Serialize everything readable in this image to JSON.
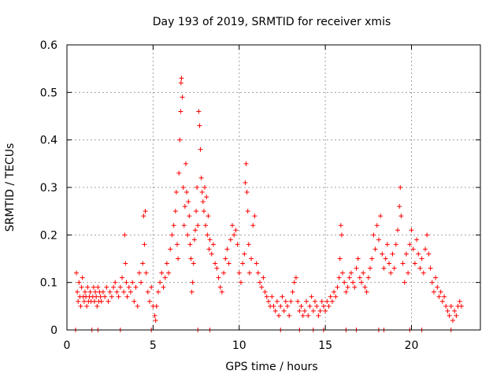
{
  "chart_data": {
    "type": "scatter",
    "title": "Day 193 of 2019, SRMTID for receiver xmis",
    "xlabel": "GPS time / hours",
    "ylabel": "SRMTID / TECUs",
    "xlim": [
      0,
      24
    ],
    "ylim": [
      0,
      0.6
    ],
    "xticks": [
      0,
      5,
      10,
      15,
      20
    ],
    "xtick_labels": [
      "0",
      "5",
      "10",
      "15",
      "20"
    ],
    "yticks": [
      0,
      0.1,
      0.2,
      0.3,
      0.4,
      0.5,
      0.6
    ],
    "ytick_labels": [
      "0",
      "0.1",
      "0.2",
      "0.3",
      "0.4",
      "0.5",
      "0.6"
    ],
    "grid": true,
    "marker": "+",
    "color": "#ff0000",
    "series": [
      {
        "name": "SRMTID",
        "points": [
          [
            0.5,
            0.0
          ],
          [
            0.55,
            0.12
          ],
          [
            0.6,
            0.08
          ],
          [
            0.65,
            0.06
          ],
          [
            0.7,
            0.1
          ],
          [
            0.75,
            0.07
          ],
          [
            0.8,
            0.05
          ],
          [
            0.85,
            0.09
          ],
          [
            0.9,
            0.11
          ],
          [
            0.95,
            0.07
          ],
          [
            1.0,
            0.06
          ],
          [
            1.05,
            0.08
          ],
          [
            1.1,
            0.07
          ],
          [
            1.15,
            0.05
          ],
          [
            1.2,
            0.09
          ],
          [
            1.25,
            0.06
          ],
          [
            1.3,
            0.07
          ],
          [
            1.35,
            0.08
          ],
          [
            1.4,
            0.06
          ],
          [
            1.45,
            0.0
          ],
          [
            1.5,
            0.07
          ],
          [
            1.55,
            0.09
          ],
          [
            1.6,
            0.06
          ],
          [
            1.65,
            0.08
          ],
          [
            1.7,
            0.07
          ],
          [
            1.75,
            0.05
          ],
          [
            1.8,
            0.09
          ],
          [
            1.85,
            0.06
          ],
          [
            1.9,
            0.08
          ],
          [
            1.95,
            0.07
          ],
          [
            2.0,
            0.06
          ],
          [
            2.1,
            0.08
          ],
          [
            2.2,
            0.07
          ],
          [
            2.3,
            0.09
          ],
          [
            2.4,
            0.06
          ],
          [
            2.5,
            0.08
          ],
          [
            2.6,
            0.07
          ],
          [
            2.7,
            0.09
          ],
          [
            2.8,
            0.1
          ],
          [
            2.9,
            0.08
          ],
          [
            3.0,
            0.07
          ],
          [
            3.1,
            0.09
          ],
          [
            3.2,
            0.11
          ],
          [
            3.3,
            0.08
          ],
          [
            3.35,
            0.2
          ],
          [
            3.4,
            0.14
          ],
          [
            3.45,
            0.1
          ],
          [
            3.5,
            0.07
          ],
          [
            3.6,
            0.09
          ],
          [
            3.7,
            0.08
          ],
          [
            3.8,
            0.1
          ],
          [
            3.9,
            0.06
          ],
          [
            4.0,
            0.09
          ],
          [
            4.1,
            0.05
          ],
          [
            4.2,
            0.12
          ],
          [
            4.3,
            0.1
          ],
          [
            4.4,
            0.14
          ],
          [
            4.45,
            0.24
          ],
          [
            4.5,
            0.18
          ],
          [
            4.55,
            0.25
          ],
          [
            4.6,
            0.12
          ],
          [
            4.7,
            0.08
          ],
          [
            4.8,
            0.06
          ],
          [
            4.9,
            0.09
          ],
          [
            5.0,
            0.05
          ],
          [
            5.1,
            0.03
          ],
          [
            5.15,
            0.02
          ],
          [
            5.2,
            0.05
          ],
          [
            5.3,
            0.08
          ],
          [
            5.4,
            0.1
          ],
          [
            5.5,
            0.12
          ],
          [
            5.6,
            0.09
          ],
          [
            5.7,
            0.11
          ],
          [
            5.8,
            0.14
          ],
          [
            5.9,
            0.12
          ],
          [
            6.0,
            0.17
          ],
          [
            6.1,
            0.2
          ],
          [
            6.2,
            0.22
          ],
          [
            6.3,
            0.25
          ],
          [
            6.35,
            0.29
          ],
          [
            6.4,
            0.18
          ],
          [
            6.45,
            0.15
          ],
          [
            6.5,
            0.33
          ],
          [
            6.55,
            0.4
          ],
          [
            6.6,
            0.46
          ],
          [
            6.62,
            0.52
          ],
          [
            6.65,
            0.53
          ],
          [
            6.7,
            0.49
          ],
          [
            6.75,
            0.3
          ],
          [
            6.8,
            0.22
          ],
          [
            6.85,
            0.26
          ],
          [
            6.9,
            0.35
          ],
          [
            6.95,
            0.29
          ],
          [
            7.0,
            0.2
          ],
          [
            7.05,
            0.27
          ],
          [
            7.1,
            0.24
          ],
          [
            7.15,
            0.18
          ],
          [
            7.2,
            0.15
          ],
          [
            7.25,
            0.08
          ],
          [
            7.3,
            0.1
          ],
          [
            7.35,
            0.14
          ],
          [
            7.4,
            0.19
          ],
          [
            7.45,
            0.21
          ],
          [
            7.5,
            0.25
          ],
          [
            7.55,
            0.3
          ],
          [
            7.6,
            0.22
          ],
          [
            7.65,
            0.46
          ],
          [
            7.7,
            0.43
          ],
          [
            7.75,
            0.38
          ],
          [
            7.8,
            0.32
          ],
          [
            7.85,
            0.29
          ],
          [
            7.9,
            0.27
          ],
          [
            7.95,
            0.25
          ],
          [
            8.0,
            0.3
          ],
          [
            8.05,
            0.22
          ],
          [
            8.1,
            0.28
          ],
          [
            8.15,
            0.2
          ],
          [
            8.2,
            0.24
          ],
          [
            8.25,
            0.17
          ],
          [
            8.3,
            0.19
          ],
          [
            8.4,
            0.16
          ],
          [
            8.5,
            0.18
          ],
          [
            8.6,
            0.14
          ],
          [
            8.7,
            0.13
          ],
          [
            8.8,
            0.11
          ],
          [
            8.9,
            0.09
          ],
          [
            9.0,
            0.08
          ],
          [
            9.1,
            0.12
          ],
          [
            9.2,
            0.15
          ],
          [
            9.3,
            0.17
          ],
          [
            9.4,
            0.14
          ],
          [
            9.5,
            0.19
          ],
          [
            9.6,
            0.22
          ],
          [
            9.7,
            0.2
          ],
          [
            9.8,
            0.21
          ],
          [
            9.9,
            0.18
          ],
          [
            10.0,
            0.12
          ],
          [
            10.1,
            0.1
          ],
          [
            10.2,
            0.14
          ],
          [
            10.3,
            0.16
          ],
          [
            10.35,
            0.31
          ],
          [
            10.4,
            0.35
          ],
          [
            10.45,
            0.29
          ],
          [
            10.5,
            0.25
          ],
          [
            10.55,
            0.18
          ],
          [
            10.6,
            0.12
          ],
          [
            10.7,
            0.15
          ],
          [
            10.8,
            0.22
          ],
          [
            10.9,
            0.24
          ],
          [
            11.0,
            0.14
          ],
          [
            11.1,
            0.12
          ],
          [
            11.2,
            0.1
          ],
          [
            11.3,
            0.09
          ],
          [
            11.4,
            0.11
          ],
          [
            11.5,
            0.08
          ],
          [
            11.6,
            0.07
          ],
          [
            11.7,
            0.06
          ],
          [
            11.8,
            0.05
          ],
          [
            11.9,
            0.07
          ],
          [
            12.0,
            0.05
          ],
          [
            12.1,
            0.04
          ],
          [
            12.2,
            0.06
          ],
          [
            12.3,
            0.03
          ],
          [
            12.4,
            0.05
          ],
          [
            12.5,
            0.07
          ],
          [
            12.6,
            0.04
          ],
          [
            12.7,
            0.06
          ],
          [
            12.8,
            0.05
          ],
          [
            12.9,
            0.03
          ],
          [
            13.0,
            0.06
          ],
          [
            13.1,
            0.08
          ],
          [
            13.2,
            0.1
          ],
          [
            13.3,
            0.11
          ],
          [
            13.4,
            0.06
          ],
          [
            13.5,
            0.04
          ],
          [
            13.6,
            0.05
          ],
          [
            13.7,
            0.03
          ],
          [
            13.8,
            0.04
          ],
          [
            13.9,
            0.06
          ],
          [
            14.0,
            0.03
          ],
          [
            14.1,
            0.05
          ],
          [
            14.2,
            0.07
          ],
          [
            14.3,
            0.04
          ],
          [
            14.4,
            0.06
          ],
          [
            14.5,
            0.05
          ],
          [
            14.6,
            0.03
          ],
          [
            14.7,
            0.04
          ],
          [
            14.8,
            0.06
          ],
          [
            14.9,
            0.05
          ],
          [
            15.0,
            0.04
          ],
          [
            15.1,
            0.06
          ],
          [
            15.2,
            0.05
          ],
          [
            15.3,
            0.07
          ],
          [
            15.4,
            0.06
          ],
          [
            15.5,
            0.08
          ],
          [
            15.6,
            0.07
          ],
          [
            15.7,
            0.09
          ],
          [
            15.8,
            0.11
          ],
          [
            15.85,
            0.15
          ],
          [
            15.9,
            0.22
          ],
          [
            15.95,
            0.2
          ],
          [
            16.0,
            0.12
          ],
          [
            16.1,
            0.1
          ],
          [
            16.2,
            0.08
          ],
          [
            16.3,
            0.09
          ],
          [
            16.4,
            0.11
          ],
          [
            16.5,
            0.12
          ],
          [
            16.6,
            0.1
          ],
          [
            16.7,
            0.09
          ],
          [
            16.8,
            0.13
          ],
          [
            16.9,
            0.15
          ],
          [
            17.0,
            0.11
          ],
          [
            17.1,
            0.1
          ],
          [
            17.2,
            0.12
          ],
          [
            17.3,
            0.09
          ],
          [
            17.4,
            0.08
          ],
          [
            17.5,
            0.11
          ],
          [
            17.6,
            0.13
          ],
          [
            17.7,
            0.15
          ],
          [
            17.8,
            0.2
          ],
          [
            17.9,
            0.17
          ],
          [
            18.0,
            0.22
          ],
          [
            18.1,
            0.19
          ],
          [
            18.2,
            0.24
          ],
          [
            18.3,
            0.16
          ],
          [
            18.4,
            0.13
          ],
          [
            18.5,
            0.15
          ],
          [
            18.6,
            0.18
          ],
          [
            18.7,
            0.14
          ],
          [
            18.8,
            0.12
          ],
          [
            18.9,
            0.16
          ],
          [
            19.0,
            0.13
          ],
          [
            19.1,
            0.18
          ],
          [
            19.2,
            0.21
          ],
          [
            19.3,
            0.26
          ],
          [
            19.35,
            0.3
          ],
          [
            19.4,
            0.24
          ],
          [
            19.5,
            0.14
          ],
          [
            19.6,
            0.1
          ],
          [
            19.7,
            0.16
          ],
          [
            19.8,
            0.12
          ],
          [
            19.9,
            0.18
          ],
          [
            20.0,
            0.21
          ],
          [
            20.1,
            0.17
          ],
          [
            20.2,
            0.14
          ],
          [
            20.3,
            0.19
          ],
          [
            20.4,
            0.16
          ],
          [
            20.5,
            0.13
          ],
          [
            20.6,
            0.15
          ],
          [
            20.7,
            0.12
          ],
          [
            20.8,
            0.17
          ],
          [
            20.9,
            0.2
          ],
          [
            21.0,
            0.16
          ],
          [
            21.1,
            0.13
          ],
          [
            21.2,
            0.1
          ],
          [
            21.3,
            0.08
          ],
          [
            21.4,
            0.11
          ],
          [
            21.5,
            0.09
          ],
          [
            21.6,
            0.07
          ],
          [
            21.7,
            0.08
          ],
          [
            21.8,
            0.06
          ],
          [
            21.9,
            0.07
          ],
          [
            22.0,
            0.05
          ],
          [
            22.1,
            0.04
          ],
          [
            22.2,
            0.03
          ],
          [
            22.3,
            0.05
          ],
          [
            22.4,
            0.02
          ],
          [
            22.5,
            0.04
          ],
          [
            22.6,
            0.03
          ],
          [
            22.7,
            0.05
          ],
          [
            22.8,
            0.06
          ],
          [
            22.9,
            0.05
          ],
          [
            1.8,
            0.0
          ],
          [
            3.1,
            0.0
          ],
          [
            4.9,
            0.0
          ],
          [
            7.6,
            0.0
          ],
          [
            8.3,
            0.0
          ],
          [
            12.4,
            0.0
          ],
          [
            13.5,
            0.0
          ],
          [
            14.3,
            0.0
          ],
          [
            14.9,
            0.0
          ],
          [
            16.2,
            0.0
          ],
          [
            16.8,
            0.0
          ],
          [
            18.1,
            0.0
          ],
          [
            18.4,
            0.0
          ],
          [
            19.9,
            0.0
          ],
          [
            20.6,
            0.0
          ],
          [
            22.3,
            0.0
          ]
        ]
      }
    ]
  }
}
